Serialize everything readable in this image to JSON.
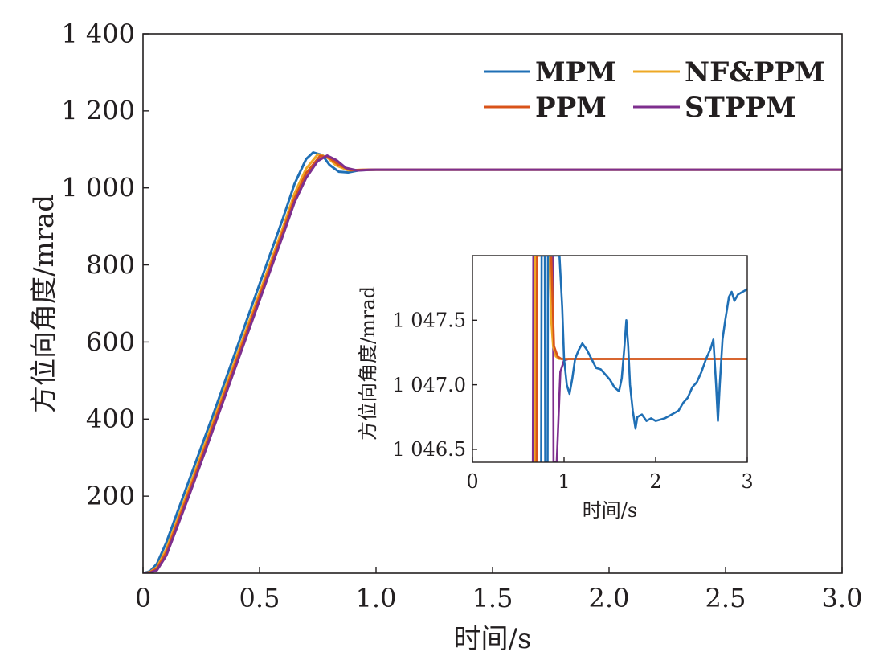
{
  "chart_data": [
    {
      "type": "line",
      "xlabel": "时间/s",
      "ylabel": "方位向角度/mrad",
      "xlim": [
        0,
        3.0
      ],
      "ylim": [
        0,
        1400
      ],
      "x_ticks": [
        0,
        0.5,
        1.0,
        1.5,
        2.0,
        2.5,
        3.0
      ],
      "x_tick_labels": [
        "0",
        "0.5",
        "1.0",
        "1.5",
        "2.0",
        "2.5",
        "3.0"
      ],
      "y_ticks": [
        200,
        400,
        600,
        800,
        1000,
        1200,
        1400
      ],
      "y_tick_labels": [
        "200",
        "400",
        "600",
        "800",
        "1 000",
        "1 200",
        "1 400"
      ],
      "legend_position": "top-right",
      "grid": false,
      "series": [
        {
          "name": "MPM",
          "color": "#1f6fb5",
          "points": [
            [
              0,
              0
            ],
            [
              0.03,
              5
            ],
            [
              0.06,
              25
            ],
            [
              0.1,
              80
            ],
            [
              0.2,
              245
            ],
            [
              0.3,
              410
            ],
            [
              0.4,
              580
            ],
            [
              0.5,
              750
            ],
            [
              0.6,
              920
            ],
            [
              0.65,
              1010
            ],
            [
              0.7,
              1075
            ],
            [
              0.73,
              1092
            ],
            [
              0.77,
              1085
            ],
            [
              0.8,
              1060
            ],
            [
              0.84,
              1042
            ],
            [
              0.88,
              1040
            ],
            [
              0.93,
              1046
            ],
            [
              1.0,
              1047.2
            ],
            [
              3.0,
              1047.2
            ]
          ]
        },
        {
          "name": "NF&PPM",
          "color": "#eea825",
          "points": [
            [
              0,
              0
            ],
            [
              0.03,
              3
            ],
            [
              0.06,
              16
            ],
            [
              0.1,
              62
            ],
            [
              0.2,
              225
            ],
            [
              0.3,
              392
            ],
            [
              0.4,
              560
            ],
            [
              0.5,
              728
            ],
            [
              0.6,
              896
            ],
            [
              0.65,
              985
            ],
            [
              0.7,
              1050
            ],
            [
              0.75,
              1087
            ],
            [
              0.79,
              1080
            ],
            [
              0.83,
              1058
            ],
            [
              0.88,
              1046
            ],
            [
              0.94,
              1047
            ],
            [
              1.0,
              1047.2
            ],
            [
              3.0,
              1047.2
            ]
          ]
        },
        {
          "name": "PPM",
          "color": "#d95319",
          "points": [
            [
              0,
              0
            ],
            [
              0.03,
              2
            ],
            [
              0.06,
              12
            ],
            [
              0.1,
              54
            ],
            [
              0.2,
              215
            ],
            [
              0.3,
              382
            ],
            [
              0.4,
              550
            ],
            [
              0.5,
              718
            ],
            [
              0.6,
              886
            ],
            [
              0.65,
              972
            ],
            [
              0.7,
              1038
            ],
            [
              0.76,
              1083
            ],
            [
              0.8,
              1078
            ],
            [
              0.84,
              1060
            ],
            [
              0.89,
              1046
            ],
            [
              0.95,
              1047
            ],
            [
              1.0,
              1047.2
            ],
            [
              3.0,
              1047.2
            ]
          ]
        },
        {
          "name": "STPPM",
          "color": "#7e2f8e",
          "points": [
            [
              0,
              0
            ],
            [
              0.03,
              1
            ],
            [
              0.06,
              8
            ],
            [
              0.1,
              46
            ],
            [
              0.2,
              205
            ],
            [
              0.3,
              372
            ],
            [
              0.4,
              540
            ],
            [
              0.5,
              708
            ],
            [
              0.6,
              876
            ],
            [
              0.65,
              962
            ],
            [
              0.7,
              1026
            ],
            [
              0.75,
              1070
            ],
            [
              0.79,
              1084
            ],
            [
              0.83,
              1072
            ],
            [
              0.87,
              1052
            ],
            [
              0.92,
              1045
            ],
            [
              0.97,
              1047
            ],
            [
              1.0,
              1047.2
            ],
            [
              3.0,
              1047.2
            ]
          ]
        }
      ]
    },
    {
      "type": "line",
      "xlabel": "时间/s",
      "ylabel": "方位向角度/mrad",
      "xlim": [
        0,
        3
      ],
      "ylim": [
        1046.4,
        1048.0
      ],
      "x_ticks": [
        0,
        1,
        2,
        3
      ],
      "x_tick_labels": [
        "0",
        "1",
        "2",
        "3"
      ],
      "y_ticks": [
        1046.5,
        1047.0,
        1047.5
      ],
      "y_tick_labels": [
        "1 046.5",
        "1 047.0",
        "1 047.5"
      ],
      "grid": false,
      "series": [
        {
          "name": "STPPM",
          "color": "#7e2f8e",
          "points": [
            [
              0.66,
              1046.4
            ],
            [
              0.665,
              1048.0
            ],
            [
              0.88,
              1048.0
            ],
            [
              0.885,
              1046.4
            ],
            [
              0.92,
              1046.4
            ],
            [
              0.96,
              1047.1
            ],
            [
              1.0,
              1047.19
            ],
            [
              1.05,
              1047.2
            ],
            [
              3.0,
              1047.2
            ]
          ]
        },
        {
          "name": "NF&PPM",
          "color": "#eea825",
          "points": [
            [
              0.68,
              1046.4
            ],
            [
              0.685,
              1048.0
            ],
            [
              0.84,
              1048.0
            ],
            [
              0.86,
              1047.5
            ],
            [
              0.88,
              1047.3
            ],
            [
              0.91,
              1047.22
            ],
            [
              0.95,
              1047.2
            ],
            [
              1.0,
              1047.2
            ],
            [
              3.0,
              1047.2
            ]
          ]
        },
        {
          "name": "PPM",
          "color": "#d95319",
          "points": [
            [
              0.7,
              1046.4
            ],
            [
              0.705,
              1048.0
            ],
            [
              0.86,
              1048.0
            ],
            [
              0.89,
              1047.3
            ],
            [
              0.93,
              1047.22
            ],
            [
              0.97,
              1047.2
            ],
            [
              3.0,
              1047.2
            ]
          ]
        },
        {
          "name": "MPM",
          "color": "#1f6fb5",
          "points": [
            [
              0.75,
              1046.4
            ],
            [
              0.755,
              1048.0
            ],
            [
              0.79,
              1048.0
            ],
            [
              0.795,
              1046.4
            ],
            [
              0.82,
              1046.4
            ],
            [
              0.825,
              1048.0
            ],
            [
              0.95,
              1048.0
            ],
            [
              0.98,
              1047.6
            ],
            [
              1.0,
              1047.2
            ],
            [
              1.03,
              1047.0
            ],
            [
              1.06,
              1046.93
            ],
            [
              1.09,
              1047.05
            ],
            [
              1.12,
              1047.2
            ],
            [
              1.16,
              1047.27
            ],
            [
              1.2,
              1047.32
            ],
            [
              1.25,
              1047.27
            ],
            [
              1.3,
              1047.2
            ],
            [
              1.35,
              1047.13
            ],
            [
              1.4,
              1047.12
            ],
            [
              1.45,
              1047.08
            ],
            [
              1.5,
              1047.04
            ],
            [
              1.55,
              1046.98
            ],
            [
              1.6,
              1046.95
            ],
            [
              1.63,
              1047.05
            ],
            [
              1.66,
              1047.3
            ],
            [
              1.68,
              1047.5
            ],
            [
              1.7,
              1047.3
            ],
            [
              1.72,
              1047.0
            ],
            [
              1.75,
              1046.8
            ],
            [
              1.78,
              1046.66
            ],
            [
              1.8,
              1046.75
            ],
            [
              1.85,
              1046.77
            ],
            [
              1.9,
              1046.72
            ],
            [
              1.95,
              1046.74
            ],
            [
              2.0,
              1046.72
            ],
            [
              2.05,
              1046.73
            ],
            [
              2.1,
              1046.74
            ],
            [
              2.15,
              1046.76
            ],
            [
              2.2,
              1046.78
            ],
            [
              2.25,
              1046.8
            ],
            [
              2.3,
              1046.86
            ],
            [
              2.35,
              1046.9
            ],
            [
              2.4,
              1046.98
            ],
            [
              2.45,
              1047.02
            ],
            [
              2.5,
              1047.1
            ],
            [
              2.55,
              1047.2
            ],
            [
              2.6,
              1047.28
            ],
            [
              2.63,
              1047.35
            ],
            [
              2.66,
              1047.0
            ],
            [
              2.68,
              1046.72
            ],
            [
              2.7,
              1047.0
            ],
            [
              2.73,
              1047.35
            ],
            [
              2.76,
              1047.5
            ],
            [
              2.8,
              1047.68
            ],
            [
              2.83,
              1047.72
            ],
            [
              2.86,
              1047.65
            ],
            [
              2.9,
              1047.7
            ],
            [
              2.95,
              1047.72
            ],
            [
              3.0,
              1047.74
            ]
          ]
        }
      ]
    }
  ]
}
